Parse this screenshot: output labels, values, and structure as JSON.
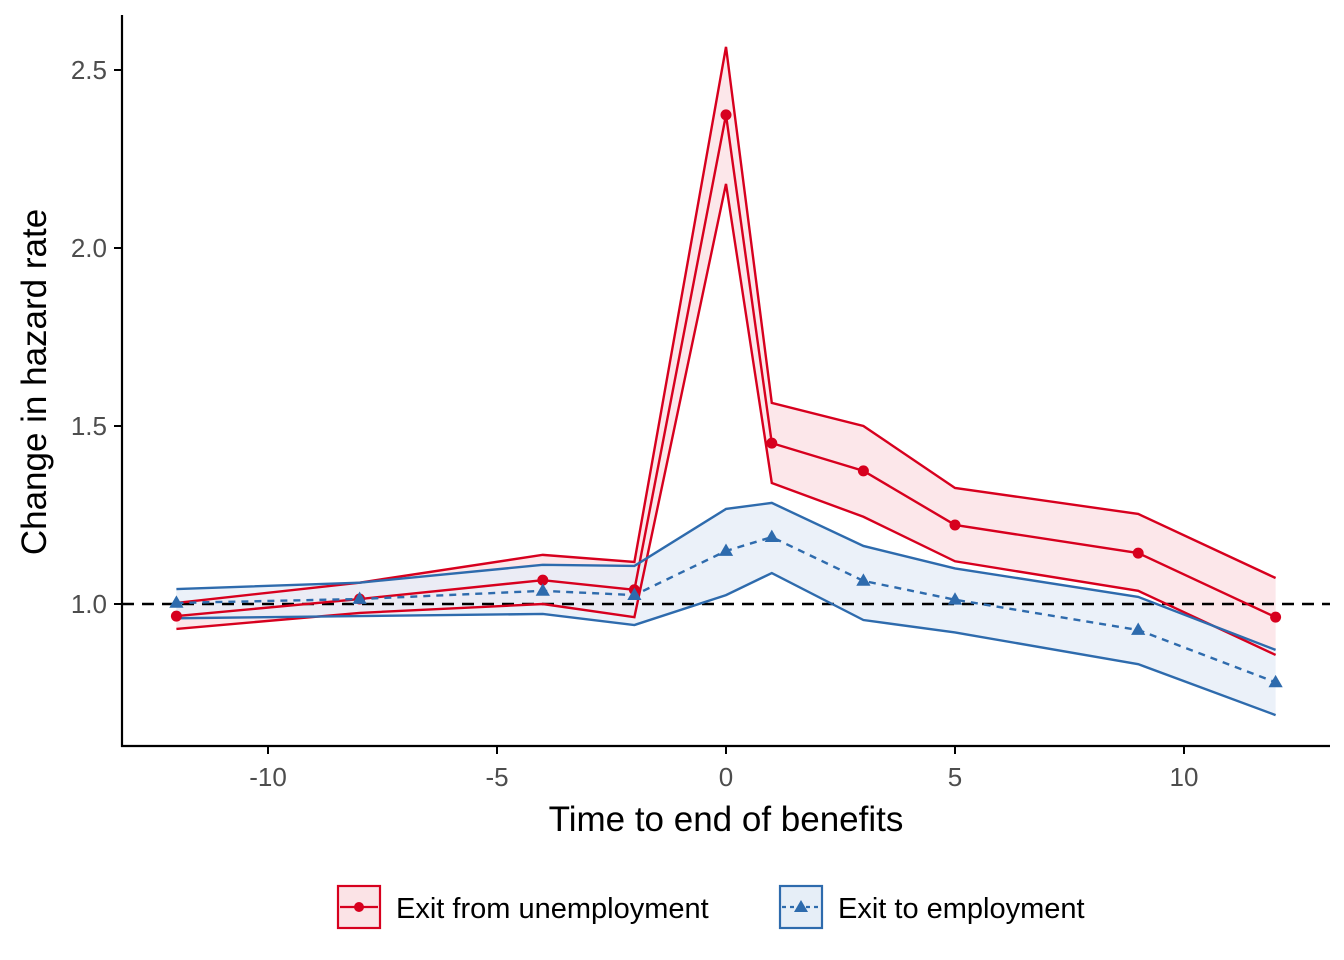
{
  "chart_data": {
    "type": "line",
    "title": "",
    "xlabel": "Time to end of benefits",
    "ylabel": "Change in hazard rate",
    "xlim": [
      -13.2,
      13.2
    ],
    "ylim": [
      0.62,
      2.66
    ],
    "xticks": [
      -10,
      -5,
      0,
      5,
      10
    ],
    "xtick_labels": [
      "-10",
      "-5",
      "0",
      "5",
      "10"
    ],
    "yticks": [
      1.0,
      1.5,
      2.0,
      2.5
    ],
    "ytick_labels": [
      "1.0",
      "1.5",
      "2.0",
      "2.5"
    ],
    "grid": false,
    "reference_line": {
      "y": 1.0,
      "style": "dashed",
      "color": "#000000"
    },
    "legend_position": "bottom",
    "x": [
      -12,
      -8,
      -4,
      -2,
      0,
      1,
      3,
      5,
      9,
      12
    ],
    "series": [
      {
        "name": "Exit from unemployment",
        "color": "#D7001E",
        "fill": "#FBE3E6",
        "marker": "circle",
        "linestyle": "solid",
        "values": [
          0.966,
          1.014,
          1.067,
          1.04,
          2.374,
          1.452,
          1.374,
          1.222,
          1.143,
          0.963
        ],
        "upper": [
          1.003,
          1.06,
          1.138,
          1.118,
          2.565,
          1.565,
          1.5,
          1.326,
          1.253,
          1.073
        ],
        "lower": [
          0.93,
          0.975,
          1.0,
          0.963,
          2.18,
          1.34,
          1.245,
          1.12,
          1.037,
          0.857
        ]
      },
      {
        "name": "Exit to employment",
        "color": "#2E6BAD",
        "fill": "#E6EEF7",
        "marker": "triangle",
        "linestyle": "dashed",
        "values": [
          1.003,
          1.014,
          1.037,
          1.025,
          1.149,
          1.188,
          1.065,
          1.012,
          0.927,
          0.78
        ],
        "upper": [
          1.042,
          1.06,
          1.11,
          1.107,
          1.267,
          1.284,
          1.163,
          1.1,
          1.02,
          0.871
        ],
        "lower": [
          0.96,
          0.966,
          0.972,
          0.941,
          1.025,
          1.087,
          0.955,
          0.92,
          0.831,
          0.688
        ]
      }
    ]
  }
}
